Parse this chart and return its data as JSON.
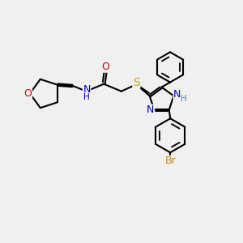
{
  "bg_color": "#f0f0f0",
  "bond_color": "#000000",
  "bond_lw": 1.5,
  "atom_colors": {
    "O": "#cc0000",
    "N": "#0000cc",
    "S": "#ccaa00",
    "Br": "#cc8800",
    "NH_color": "#4488aa"
  },
  "font_size_atom": 9,
  "font_size_small": 7.5,
  "scale": 1.0
}
